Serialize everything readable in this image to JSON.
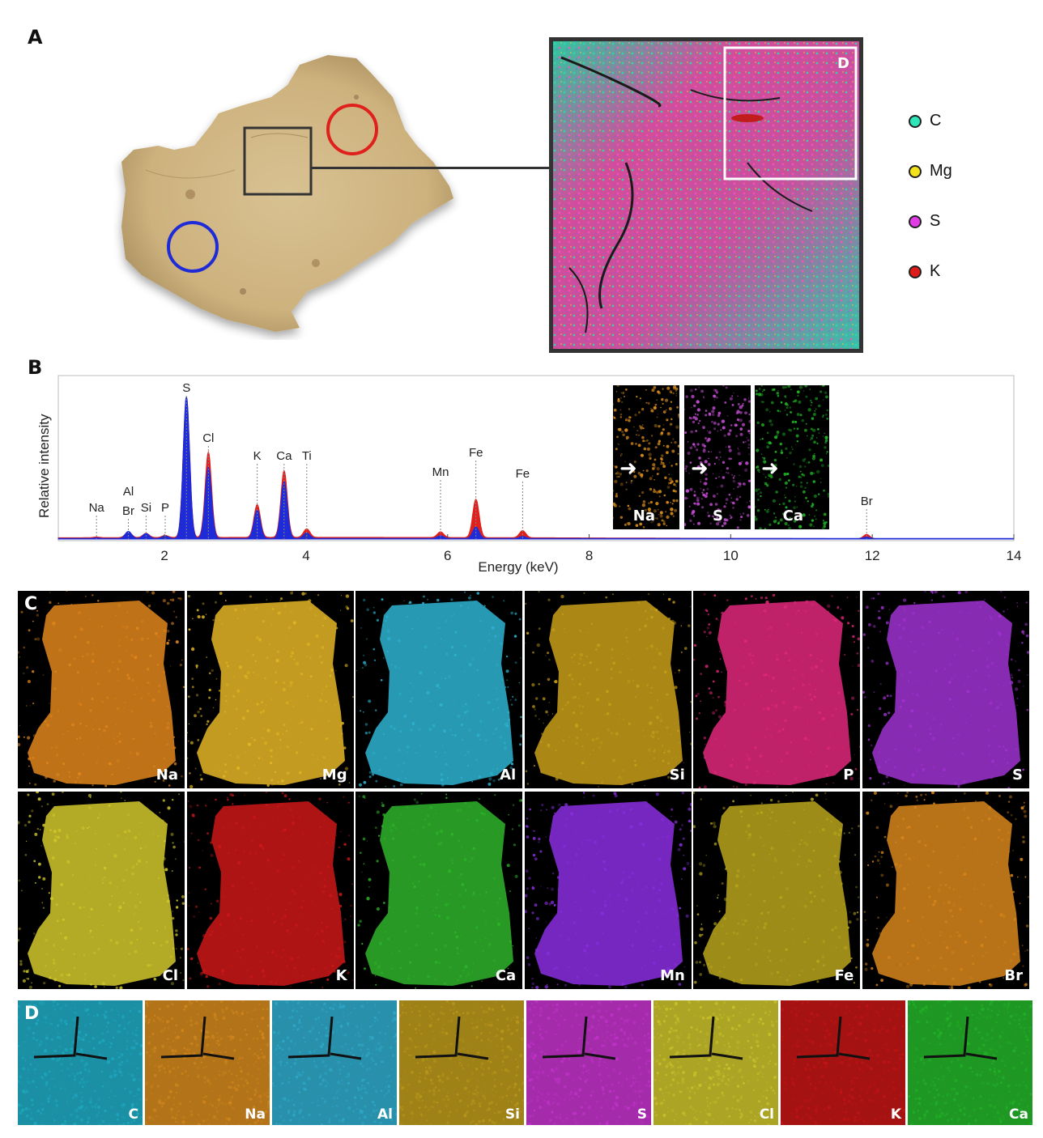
{
  "panels": {
    "A": "A",
    "B": "B",
    "C": "C",
    "D": "D"
  },
  "panel_a": {
    "inset_label": "D",
    "legend": [
      {
        "label": "C",
        "color": "#2ee6b8"
      },
      {
        "label": "Mg",
        "color": "#f2e21a"
      },
      {
        "label": "S",
        "color": "#e23ce6"
      },
      {
        "label": "K",
        "color": "#e01b1b"
      }
    ],
    "circle_colors": {
      "red": "#e0201c",
      "blue": "#1e2bd6"
    }
  },
  "chart_data": {
    "type": "area",
    "xlabel": "Energy (keV)",
    "ylabel": "Relative intensity",
    "xlim": [
      0.5,
      14
    ],
    "x_ticks": [
      2,
      4,
      6,
      8,
      10,
      12,
      14
    ],
    "grid": false,
    "series": [
      {
        "color": "#e0201c",
        "peaks": [
          [
            1.04,
            0.005
          ],
          [
            1.49,
            0.04
          ],
          [
            1.74,
            0.03
          ],
          [
            2.01,
            0.015
          ],
          [
            2.31,
            0.98
          ],
          [
            2.62,
            0.6
          ],
          [
            3.31,
            0.23
          ],
          [
            3.69,
            0.47
          ],
          [
            4.01,
            0.06
          ],
          [
            5.9,
            0.04
          ],
          [
            6.4,
            0.27
          ],
          [
            7.06,
            0.05
          ],
          [
            11.92,
            0.03
          ]
        ]
      },
      {
        "color": "#1e2bd6",
        "peaks": [
          [
            1.04,
            0.004
          ],
          [
            1.49,
            0.05
          ],
          [
            1.74,
            0.035
          ],
          [
            2.01,
            0.018
          ],
          [
            2.31,
            1.0
          ],
          [
            2.62,
            0.5
          ],
          [
            3.31,
            0.2
          ],
          [
            3.69,
            0.4
          ],
          [
            4.01,
            0.04
          ],
          [
            5.9,
            0.02
          ],
          [
            6.4,
            0.08
          ],
          [
            7.06,
            0.015
          ],
          [
            11.92,
            0.01
          ]
        ]
      }
    ],
    "peak_labels": [
      {
        "text": "Na",
        "x": 1.04
      },
      {
        "text": "Al",
        "x": 1.49
      },
      {
        "text": "Br",
        "x": 1.49
      },
      {
        "text": "Si",
        "x": 1.74
      },
      {
        "text": "P",
        "x": 2.01
      },
      {
        "text": "S",
        "x": 2.31
      },
      {
        "text": "Cl",
        "x": 2.62
      },
      {
        "text": "K",
        "x": 3.31
      },
      {
        "text": "Ca",
        "x": 3.69
      },
      {
        "text": "Ti",
        "x": 4.01
      },
      {
        "text": "Mn",
        "x": 5.9
      },
      {
        "text": "Fe",
        "x": 6.4
      },
      {
        "text": "Fe",
        "x": 7.06
      },
      {
        "text": "Br",
        "x": 11.92
      }
    ],
    "insets": [
      {
        "label": "Na",
        "color": "#e8961c"
      },
      {
        "label": "S",
        "color": "#d050e0"
      },
      {
        "label": "Ca",
        "color": "#22c828"
      }
    ]
  },
  "panel_c": {
    "tiles": [
      {
        "label": "Na",
        "color": "#e0861c"
      },
      {
        "label": "Mg",
        "color": "#e4b626"
      },
      {
        "label": "Al",
        "color": "#2eb4d2"
      },
      {
        "label": "Si",
        "color": "#c9a01a"
      },
      {
        "label": "P",
        "color": "#e0287a"
      },
      {
        "label": "S",
        "color": "#a032d2"
      },
      {
        "label": "Cl",
        "color": "#d2c82c"
      },
      {
        "label": "K",
        "color": "#cc1818"
      },
      {
        "label": "Ca",
        "color": "#2eb42a"
      },
      {
        "label": "Mn",
        "color": "#8a2ee0"
      },
      {
        "label": "Fe",
        "color": "#b8a61c"
      },
      {
        "label": "Br",
        "color": "#d8861c"
      }
    ]
  },
  "panel_d": {
    "tiles": [
      {
        "label": "C",
        "color": "#1ea8c0"
      },
      {
        "label": "Na",
        "color": "#d0861c"
      },
      {
        "label": "Al",
        "color": "#2ea8c8"
      },
      {
        "label": "Si",
        "color": "#b8961a"
      },
      {
        "label": "S",
        "color": "#c032c8"
      },
      {
        "label": "Cl",
        "color": "#c8c02a"
      },
      {
        "label": "K",
        "color": "#c01414"
      },
      {
        "label": "Ca",
        "color": "#22b028"
      }
    ]
  }
}
